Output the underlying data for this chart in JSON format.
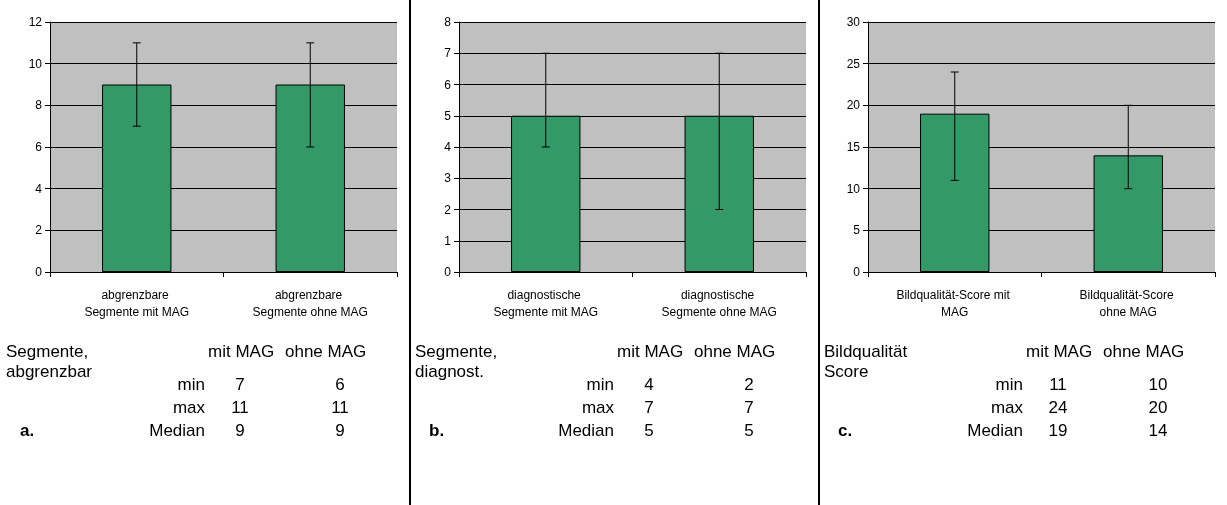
{
  "chart_data": [
    {
      "type": "bar",
      "categories": [
        "abgrenzbare Segmente mit MAG",
        "abgrenzbare Segmente ohne MAG"
      ],
      "values": [
        9,
        9
      ],
      "errors": [
        [
          7,
          11
        ],
        [
          6,
          11
        ]
      ],
      "color": "#339966",
      "ylim": [
        0,
        12
      ],
      "yticks": [
        0,
        2,
        4,
        6,
        8,
        10,
        12
      ],
      "grid": "y",
      "annotations": [
        "Segmente, abgrenzbar",
        "mit MAG",
        "ohne MAG",
        "min",
        "7",
        "6",
        "max",
        "11",
        "11",
        "Median",
        "9",
        "9",
        "a."
      ]
    },
    {
      "type": "bar",
      "categories": [
        "diagnostische Segmente mit MAG",
        "diagnostische Segmente ohne MAG"
      ],
      "values": [
        5,
        5
      ],
      "errors": [
        [
          4,
          7
        ],
        [
          2,
          7
        ]
      ],
      "color": "#339966",
      "ylim": [
        0,
        8
      ],
      "yticks": [
        0,
        1,
        2,
        3,
        4,
        5,
        6,
        7,
        8
      ],
      "grid": "y",
      "annotations": [
        "Segmente, diagnost.",
        "mit MAG",
        "ohne MAG",
        "min",
        "4",
        "2",
        "max",
        "7",
        "7",
        "Median",
        "5",
        "5",
        "b."
      ]
    },
    {
      "type": "bar",
      "categories": [
        "Bildqualität-Score mit MAG",
        "Bildqualität-Score ohne MAG"
      ],
      "values": [
        19,
        14
      ],
      "errors": [
        [
          11,
          24
        ],
        [
          10,
          20
        ]
      ],
      "color": "#339966",
      "ylim": [
        0,
        30
      ],
      "yticks": [
        0,
        5,
        10,
        15,
        20,
        25,
        30
      ],
      "grid": "y",
      "annotations": [
        "Bildqualität Score",
        "mit MAG",
        "ohne MAG",
        "min",
        "11",
        "10",
        "max",
        "24",
        "20",
        "Median",
        "19",
        "14",
        "c."
      ]
    }
  ]
}
